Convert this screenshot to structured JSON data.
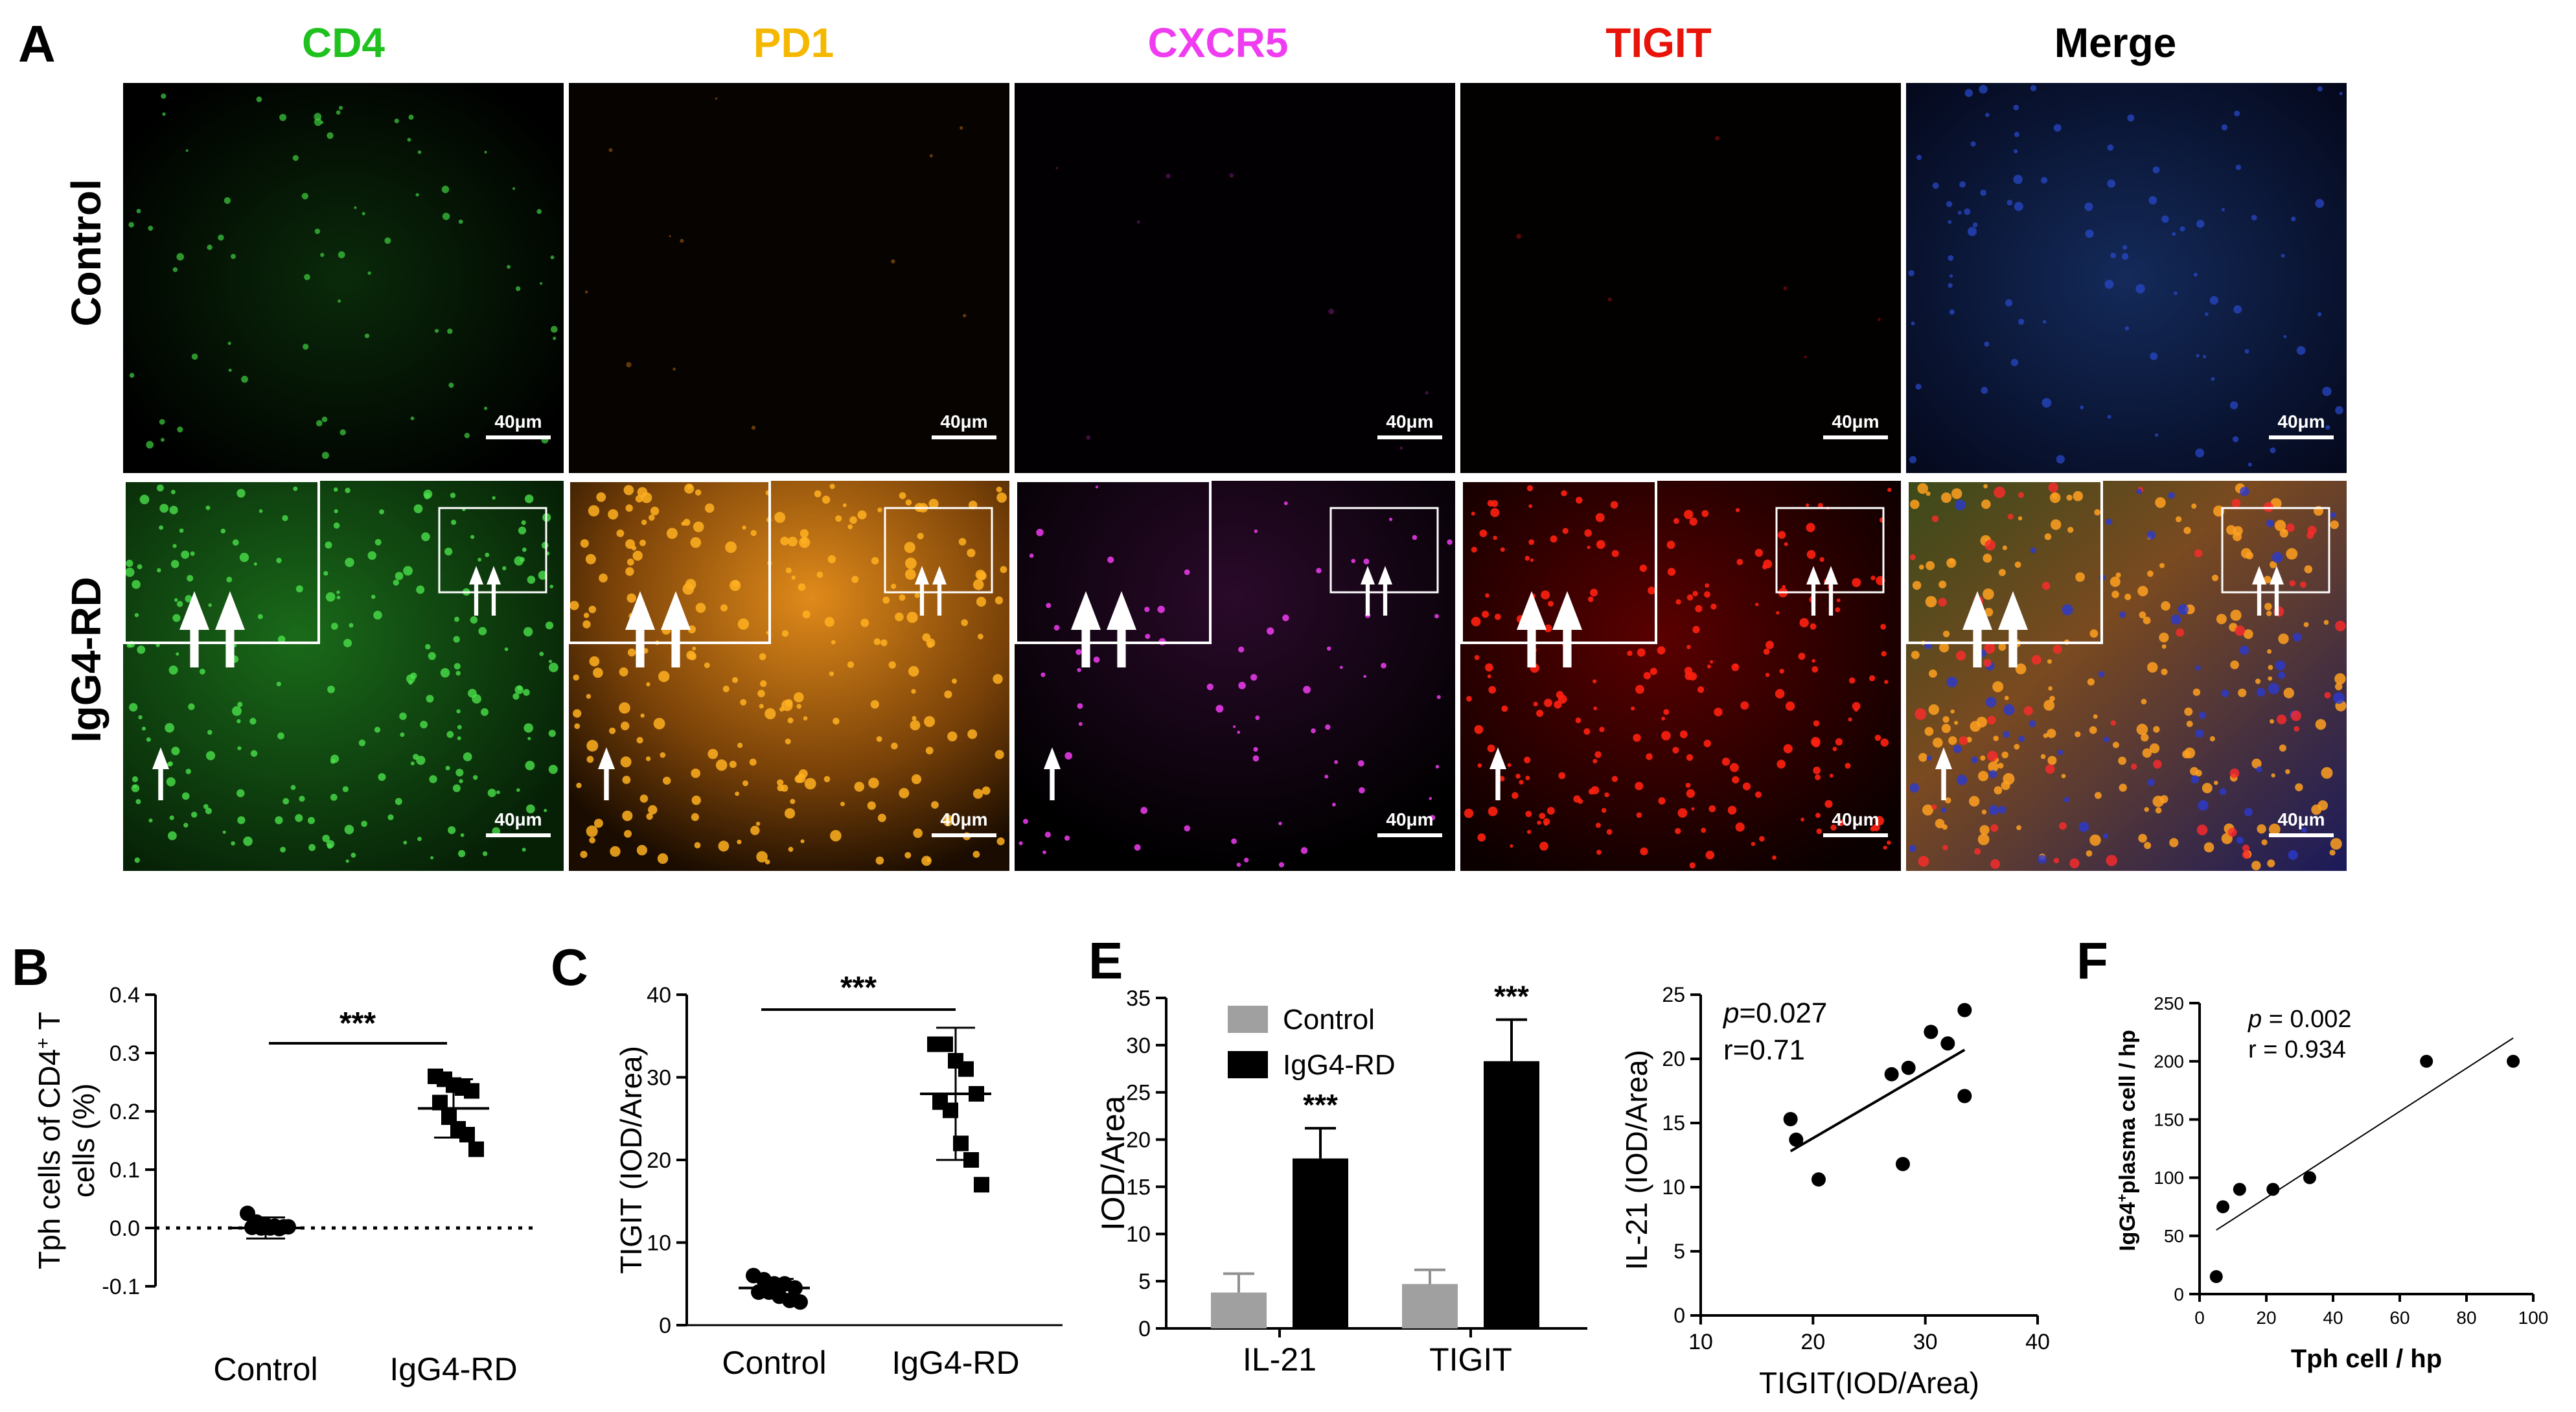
{
  "panel_letters": {
    "a": "A",
    "b": "B",
    "c": "C",
    "e": "E",
    "f": "F"
  },
  "panel_a": {
    "channels": [
      {
        "label": "CD4",
        "color": "#1fc11f"
      },
      {
        "label": "PD1",
        "color": "#f5b800"
      },
      {
        "label": "CXCR5",
        "color": "#f03cf0"
      },
      {
        "label": "TIGIT",
        "color": "#e8140a"
      },
      {
        "label": "Merge",
        "color": "#000000"
      }
    ],
    "rows": [
      "Control",
      "IgG4-RD"
    ],
    "scale_bar": "40μm"
  },
  "chart_data": [
    {
      "id": "B",
      "type": "scatter",
      "categories": [
        "Control",
        "IgG4-RD"
      ],
      "series": [
        {
          "name": "Control",
          "values": [
            0.025,
            0.01,
            0.005,
            0.003,
            0.002,
            0.001,
            0.0,
            0.0,
            -0.001,
            0.002
          ]
        },
        {
          "name": "IgG4-RD",
          "values": [
            0.26,
            0.255,
            0.245,
            0.24,
            0.235,
            0.215,
            0.19,
            0.17,
            0.16,
            0.135
          ]
        }
      ],
      "mean": [
        0.0,
        0.205
      ],
      "sd": [
        0.018,
        0.05
      ],
      "ylabel_parts": [
        "Tph cells of CD4",
        "+",
        " T",
        "cells (%)"
      ],
      "ylim": [
        -0.1,
        0.4
      ],
      "yticks": [
        "-0.1",
        "0.0",
        "0.1",
        "0.2",
        "0.3",
        "0.4"
      ],
      "significance": "***",
      "reference_line": 0
    },
    {
      "id": "C",
      "type": "scatter",
      "categories": [
        "Control",
        "IgG4-RD"
      ],
      "series": [
        {
          "name": "Control",
          "values": [
            6,
            5.5,
            5,
            5,
            4.5,
            4,
            4,
            3.5,
            3,
            2.8
          ]
        },
        {
          "name": "IgG4-RD",
          "values": [
            34,
            34,
            32,
            31,
            28,
            27,
            26,
            22,
            20,
            17
          ]
        }
      ],
      "mean": [
        4.5,
        28
      ],
      "sd": [
        1.1,
        8
      ],
      "ylabel": "TIGIT (IOD/Area)",
      "ylim": [
        0,
        40
      ],
      "yticks": [
        "0",
        "10",
        "20",
        "30",
        "40"
      ],
      "significance": "***"
    },
    {
      "id": "E-bar",
      "type": "bar",
      "categories": [
        "IL-21",
        "TIGIT"
      ],
      "series": [
        {
          "name": "Control",
          "color": "#a0a0a0",
          "values": [
            3.8,
            4.7
          ],
          "errors": [
            2.0,
            1.5
          ]
        },
        {
          "name": "IgG4-RD",
          "color": "#000000",
          "values": [
            18,
            28.3
          ],
          "errors": [
            3.2,
            4.4
          ]
        }
      ],
      "ylabel": "IOD/Area",
      "ylim": [
        0,
        35
      ],
      "yticks": [
        "0",
        "5",
        "10",
        "15",
        "20",
        "25",
        "30",
        "35"
      ],
      "significance": [
        "***",
        "***"
      ]
    },
    {
      "id": "E-scatter",
      "type": "scatter",
      "points": [
        [
          18,
          15.3
        ],
        [
          18.5,
          13.7
        ],
        [
          20.5,
          10.6
        ],
        [
          27,
          18.8
        ],
        [
          28,
          11.8
        ],
        [
          28.5,
          19.3
        ],
        [
          30.5,
          22.1
        ],
        [
          32,
          21.2
        ],
        [
          33.5,
          23.8
        ],
        [
          33.5,
          17.1
        ]
      ],
      "fit": {
        "x": [
          18,
          33.5
        ],
        "y": [
          12.8,
          20.7
        ]
      },
      "xlabel": "TIGIT(IOD/Area)",
      "ylabel": "IL-21 (IOD/Area)",
      "xlim": [
        10,
        40
      ],
      "ylim": [
        0,
        25
      ],
      "xticks": [
        "10",
        "20",
        "30",
        "40"
      ],
      "yticks": [
        "0",
        "5",
        "10",
        "15",
        "20",
        "25"
      ],
      "stat_p_label": "p",
      "stat_p_value": "=0.027",
      "stat_r": "r=0.71"
    },
    {
      "id": "F",
      "type": "scatter",
      "points": [
        [
          5,
          15
        ],
        [
          7,
          75
        ],
        [
          12,
          90
        ],
        [
          22,
          90
        ],
        [
          33,
          100
        ],
        [
          68,
          200
        ],
        [
          94,
          200
        ]
      ],
      "fit": {
        "x": [
          5,
          94
        ],
        "y": [
          55,
          220
        ]
      },
      "xlabel": "Tph cell / hp",
      "ylabel_parts": [
        "IgG4",
        "+",
        "plasma cell / hp"
      ],
      "xlim": [
        0,
        100
      ],
      "ylim": [
        0,
        250
      ],
      "xticks": [
        "0",
        "20",
        "40",
        "60",
        "80",
        "100"
      ],
      "yticks": [
        "0",
        "50",
        "100",
        "150",
        "200",
        "250"
      ],
      "stat_p_label": "p",
      "stat_p_value": " = 0.002",
      "stat_r": "r = 0.934"
    }
  ]
}
